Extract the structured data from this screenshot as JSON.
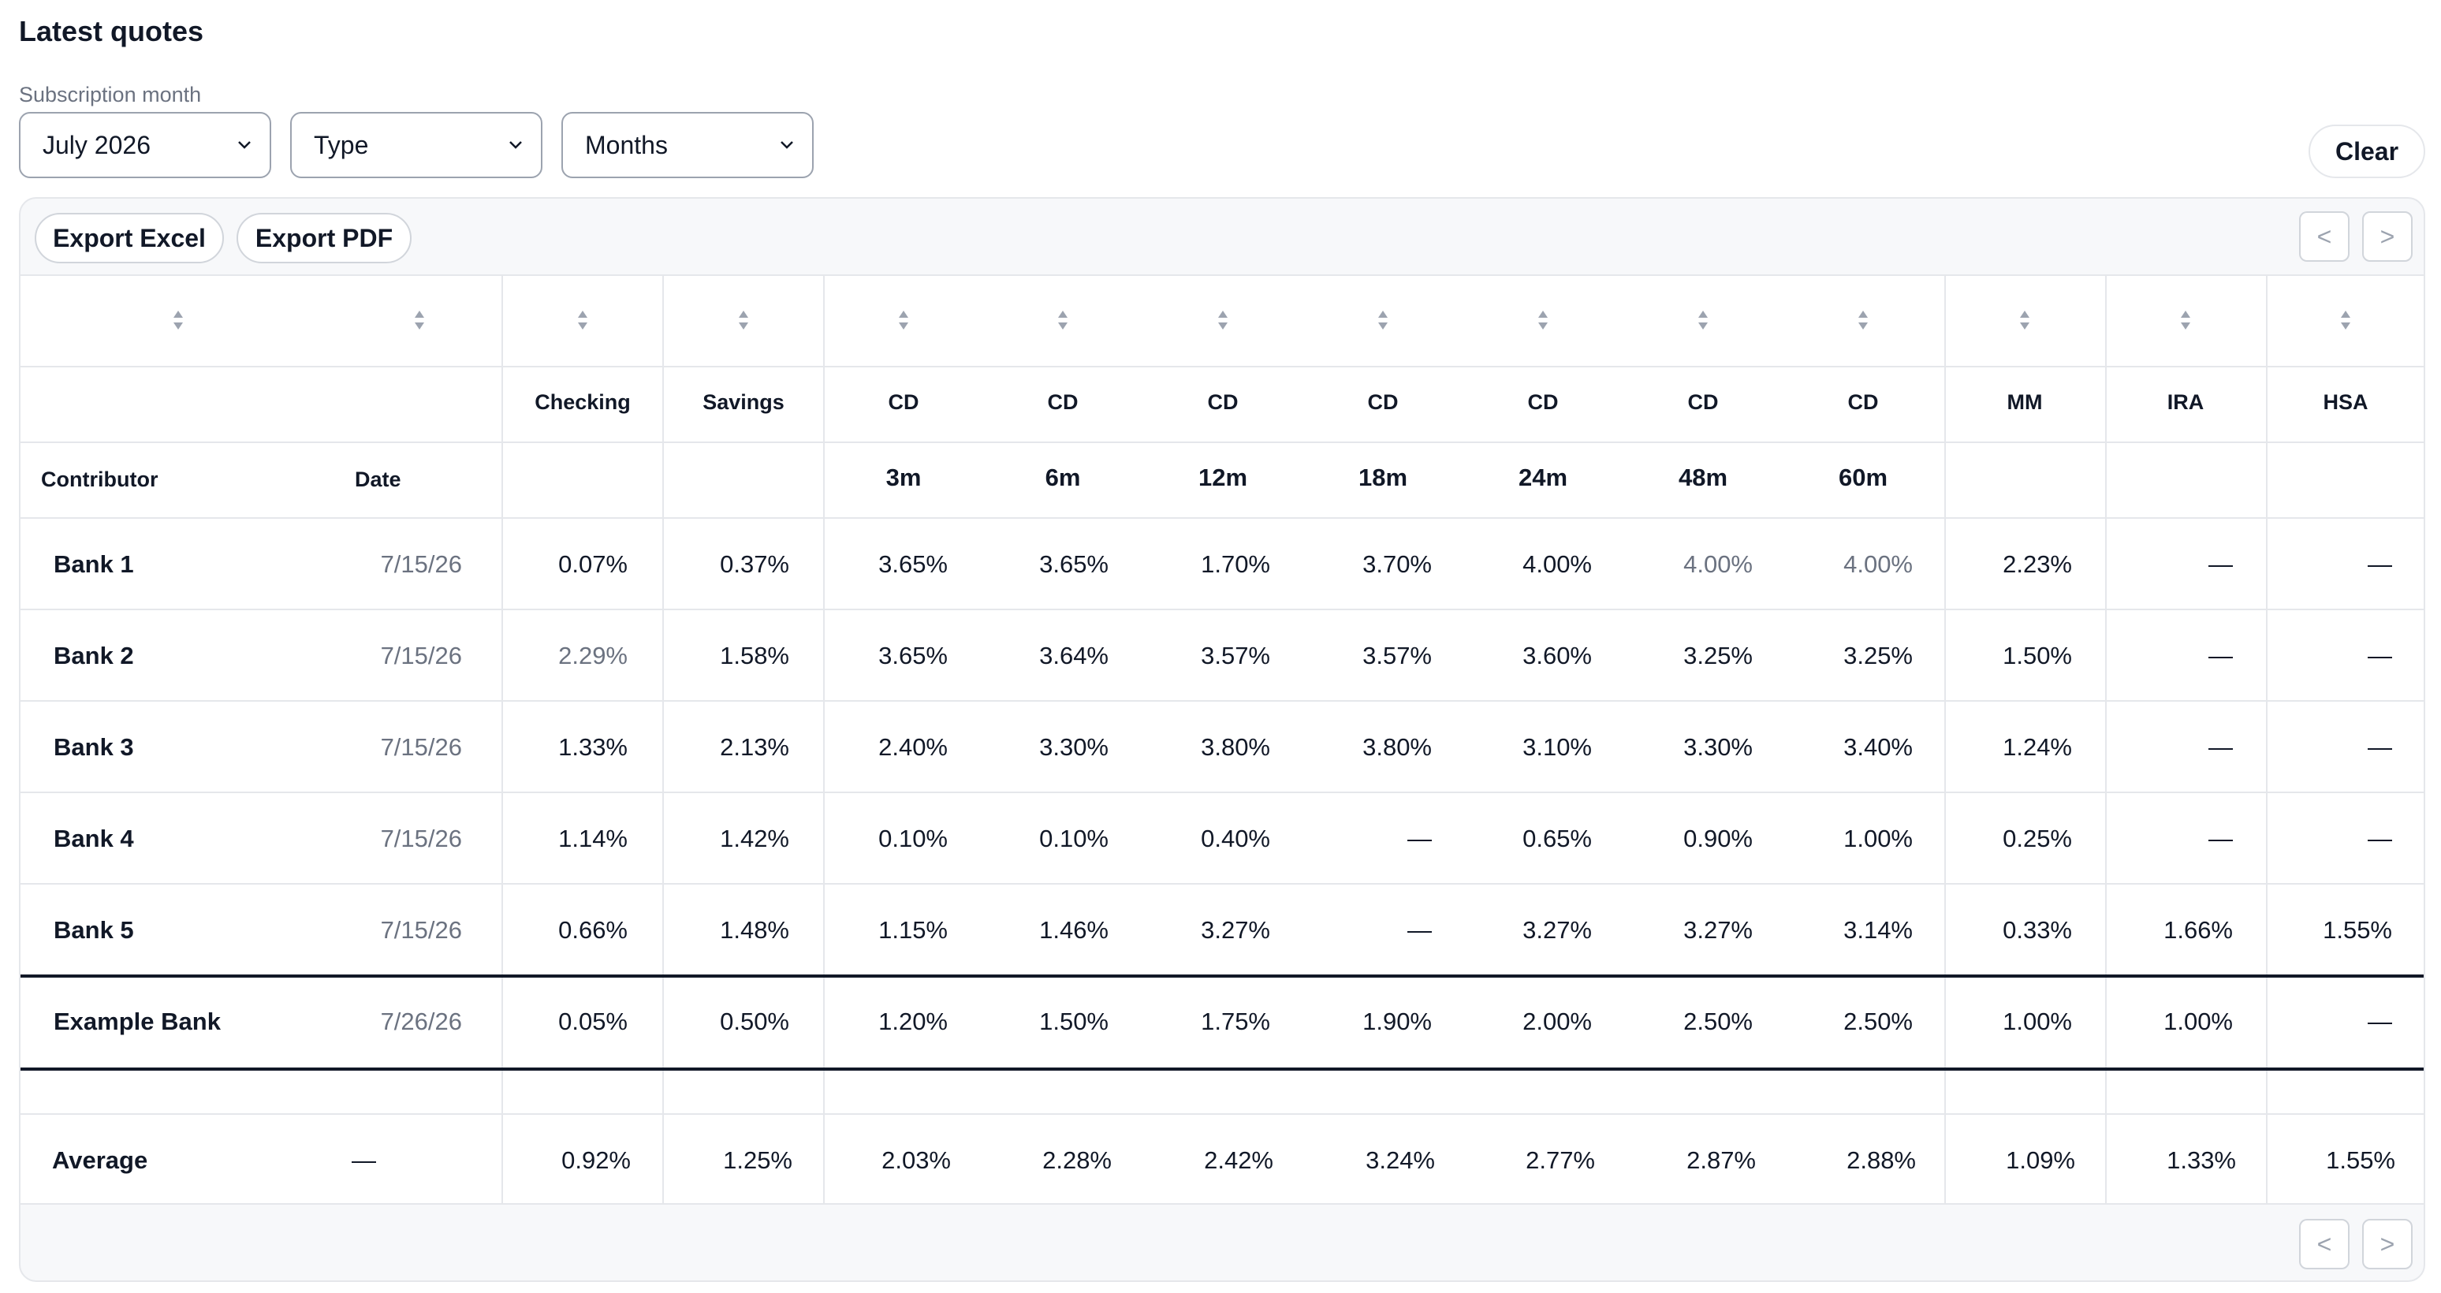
{
  "title": "Latest quotes",
  "filters": {
    "label": "Subscription month",
    "month_value": "July 2026",
    "type_placeholder": "Type",
    "months_placeholder": "Months",
    "clear_label": "Clear"
  },
  "toolbar": {
    "export_excel": "Export Excel",
    "export_pdf": "Export PDF",
    "prev": "<",
    "next": ">"
  },
  "columns": {
    "contributor": "Contributor",
    "date": "Date",
    "rates": [
      {
        "type": "Checking",
        "term": ""
      },
      {
        "type": "Savings",
        "term": ""
      },
      {
        "type": "CD",
        "term": "3m"
      },
      {
        "type": "CD",
        "term": "6m"
      },
      {
        "type": "CD",
        "term": "12m"
      },
      {
        "type": "CD",
        "term": "18m"
      },
      {
        "type": "CD",
        "term": "24m"
      },
      {
        "type": "CD",
        "term": "48m"
      },
      {
        "type": "CD",
        "term": "60m"
      },
      {
        "type": "MM",
        "term": ""
      },
      {
        "type": "IRA",
        "term": ""
      },
      {
        "type": "HSA",
        "term": ""
      }
    ]
  },
  "rows": [
    {
      "name": "Bank 1",
      "date": "7/15/26",
      "values": [
        "0.07%",
        "0.37%",
        "3.65%",
        "3.65%",
        "1.70%",
        "3.70%",
        "4.00%",
        "4.00%",
        "4.00%",
        "2.23%",
        "—",
        "—"
      ],
      "muted": [
        7,
        8
      ]
    },
    {
      "name": "Bank 2",
      "date": "7/15/26",
      "values": [
        "2.29%",
        "1.58%",
        "3.65%",
        "3.64%",
        "3.57%",
        "3.57%",
        "3.60%",
        "3.25%",
        "3.25%",
        "1.50%",
        "—",
        "—"
      ],
      "muted": [
        0
      ]
    },
    {
      "name": "Bank 3",
      "date": "7/15/26",
      "values": [
        "1.33%",
        "2.13%",
        "2.40%",
        "3.30%",
        "3.80%",
        "3.80%",
        "3.10%",
        "3.30%",
        "3.40%",
        "1.24%",
        "—",
        "—"
      ],
      "muted": []
    },
    {
      "name": "Bank 4",
      "date": "7/15/26",
      "values": [
        "1.14%",
        "1.42%",
        "0.10%",
        "0.10%",
        "0.40%",
        "—",
        "0.65%",
        "0.90%",
        "1.00%",
        "0.25%",
        "—",
        "—"
      ],
      "muted": []
    },
    {
      "name": "Bank 5",
      "date": "7/15/26",
      "values": [
        "0.66%",
        "1.48%",
        "1.15%",
        "1.46%",
        "3.27%",
        "—",
        "3.27%",
        "3.27%",
        "3.14%",
        "0.33%",
        "1.66%",
        "1.55%"
      ],
      "muted": []
    }
  ],
  "highlight_row": {
    "name": "Example Bank",
    "date": "7/26/26",
    "values": [
      "0.05%",
      "0.50%",
      "1.20%",
      "1.50%",
      "1.75%",
      "1.90%",
      "2.00%",
      "2.50%",
      "2.50%",
      "1.00%",
      "1.00%",
      "—"
    ]
  },
  "average_row": {
    "name": "Average",
    "date": "—",
    "values": [
      "0.92%",
      "1.25%",
      "2.03%",
      "2.28%",
      "2.42%",
      "3.24%",
      "2.77%",
      "2.87%",
      "2.88%",
      "1.09%",
      "1.33%",
      "1.55%"
    ]
  },
  "colors": {
    "border": "#e5e7eb",
    "muted_text": "#6b7280",
    "card_bg": "#f7f8fa"
  }
}
